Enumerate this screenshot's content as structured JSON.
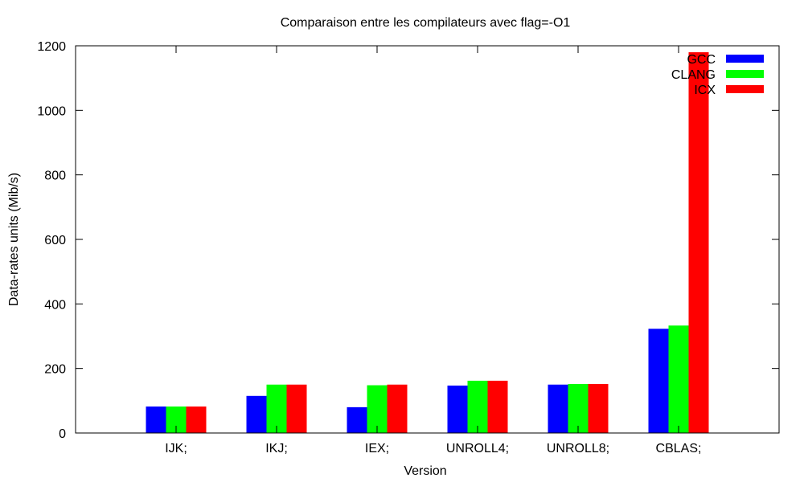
{
  "chart_data": {
    "type": "bar",
    "title": "Comparaison entre les compilateurs avec flag=-O1",
    "xlabel": "Version",
    "ylabel": "Data-rates units (Mib/s)",
    "ylim": [
      0,
      1200
    ],
    "yticks": [
      0,
      200,
      400,
      600,
      800,
      1000,
      1200
    ],
    "grid": false,
    "legend_position": "top-right",
    "categories": [
      "IJK;",
      "IKJ;",
      "IEX;",
      "UNROLL4;",
      "UNROLL8;",
      "CBLAS;"
    ],
    "series": [
      {
        "name": "GCC",
        "color": "#0000ff",
        "values": [
          82,
          115,
          80,
          147,
          150,
          323
        ]
      },
      {
        "name": "CLANG",
        "color": "#00ff00",
        "values": [
          82,
          150,
          148,
          162,
          152,
          333
        ]
      },
      {
        "name": "ICX",
        "color": "#ff0000",
        "values": [
          82,
          150,
          150,
          162,
          152,
          1180
        ]
      }
    ]
  }
}
